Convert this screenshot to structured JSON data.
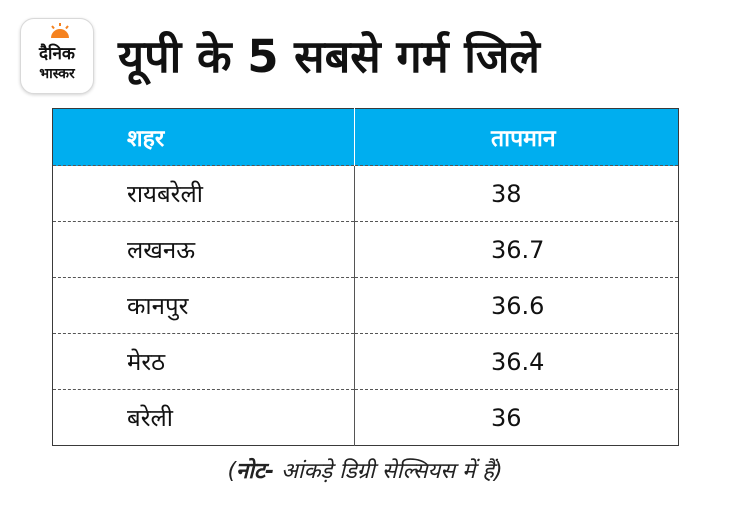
{
  "brand": {
    "name_line1": "दैनिक",
    "name_line2": "भास्कर",
    "sun_color": "#f5821f"
  },
  "title": "यूपी के 5 सबसे गर्म जिले",
  "header_color": "#00aeef",
  "table": {
    "headers": [
      "शहर",
      "तापमान"
    ]
  },
  "chart_data": {
    "type": "table",
    "title": "यूपी के 5 सबसे गर्म जिले",
    "columns": [
      "शहर",
      "तापमान"
    ],
    "rows": [
      [
        "रायबरेली",
        "38"
      ],
      [
        "लखनऊ",
        "36.7"
      ],
      [
        "कानपुर",
        "36.6"
      ],
      [
        "मेरठ",
        "36.4"
      ],
      [
        "बरेली",
        "36"
      ]
    ]
  },
  "note": {
    "open": "(",
    "bold": "नोट-",
    "text": " आंकड़े डिग्री सेल्सियस में हैं",
    "close": ")"
  }
}
